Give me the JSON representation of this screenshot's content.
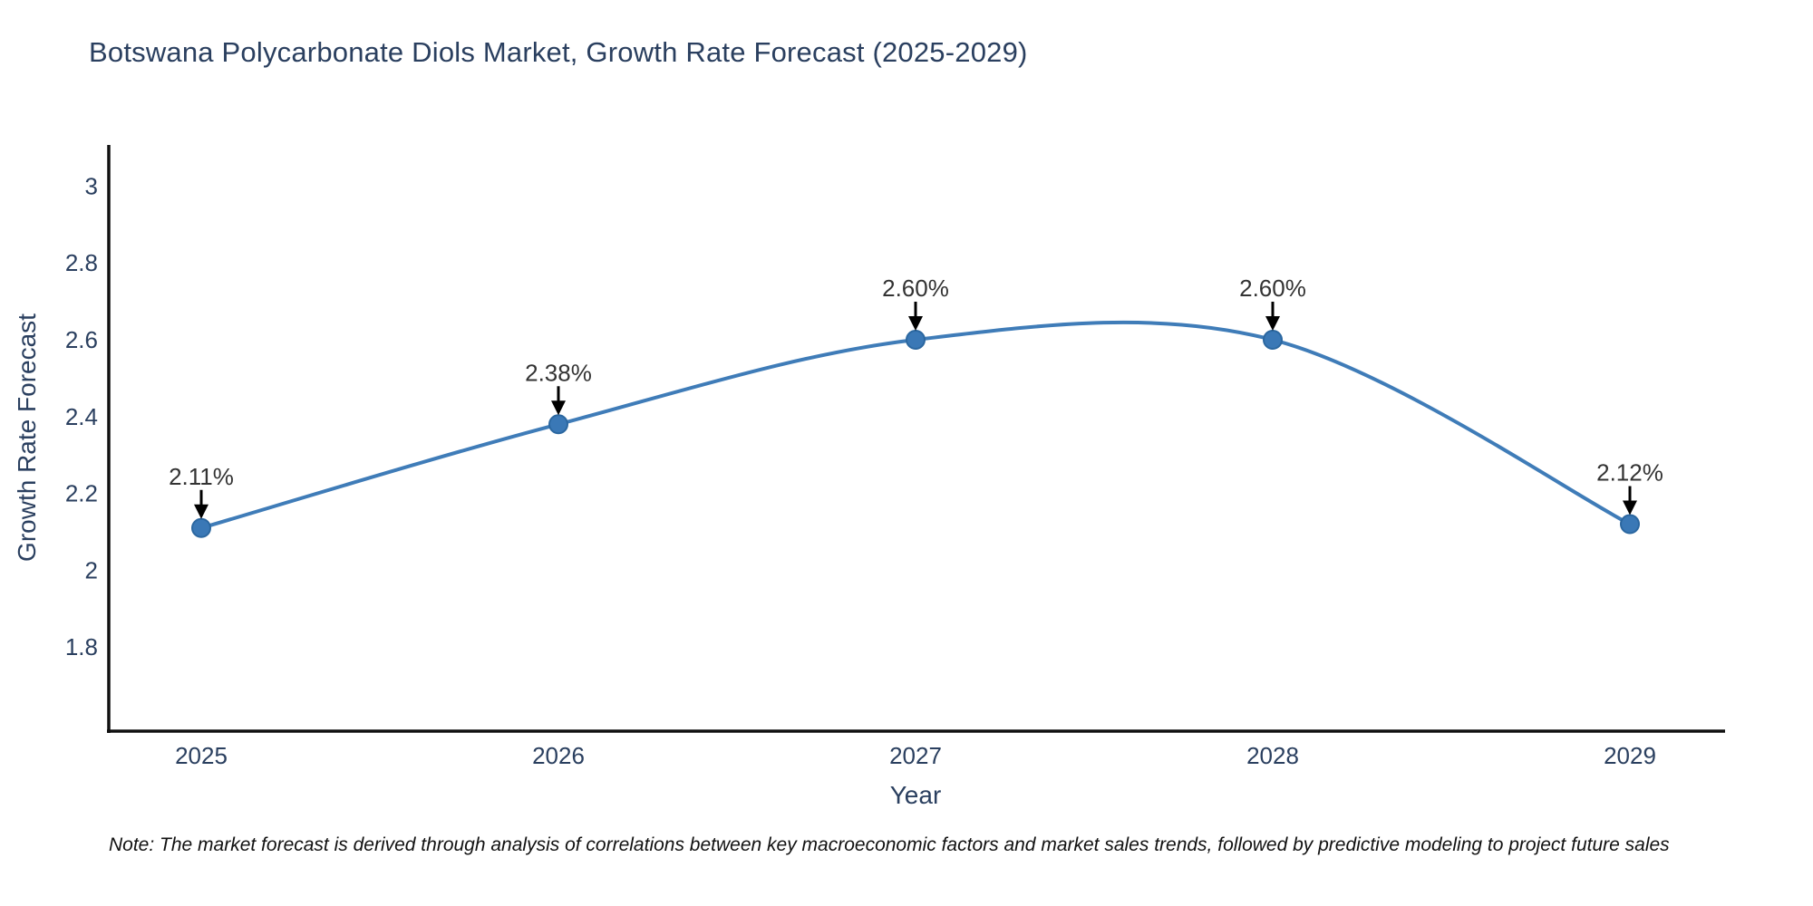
{
  "title": "Botswana Polycarbonate Diols Market, Growth Rate Forecast (2025-2029)",
  "note": "Note: The market forecast is derived through analysis of correlations between key macroeconomic factors and market sales trends, followed by predictive modeling to project future sales",
  "chart_data": {
    "type": "line",
    "line_shape": "spline",
    "x": [
      "2025",
      "2026",
      "2027",
      "2028",
      "2029"
    ],
    "series": [
      {
        "name": "Growth Rate Forecast",
        "values": [
          2.11,
          2.38,
          2.6,
          2.6,
          2.12
        ]
      }
    ],
    "point_labels": [
      "2.11%",
      "2.38%",
      "2.60%",
      "2.60%",
      "2.12%"
    ],
    "title": "Botswana Polycarbonate Diols Market, Growth Rate Forecast (2025-2029)",
    "xlabel": "Year",
    "ylabel": "Growth Rate Forecast",
    "ytick_labels": [
      "1.8",
      "2",
      "2.2",
      "2.4",
      "2.6",
      "2.8",
      "3"
    ],
    "yticks": [
      1.8,
      2.0,
      2.2,
      2.4,
      2.6,
      2.8,
      3.0
    ],
    "ylim": [
      1.58,
      3.11
    ],
    "grid": false,
    "legend": "none",
    "colors": {
      "line": "#3f7cb8",
      "marker_fill": "#3a78b6",
      "marker_stroke": "#2b67a0",
      "axis_line": "#111111",
      "tick_label": "#2a3f5f",
      "annotation_text": "#333333",
      "annotation_arrow": "#000000",
      "title_text": "#2a3f5f"
    }
  }
}
